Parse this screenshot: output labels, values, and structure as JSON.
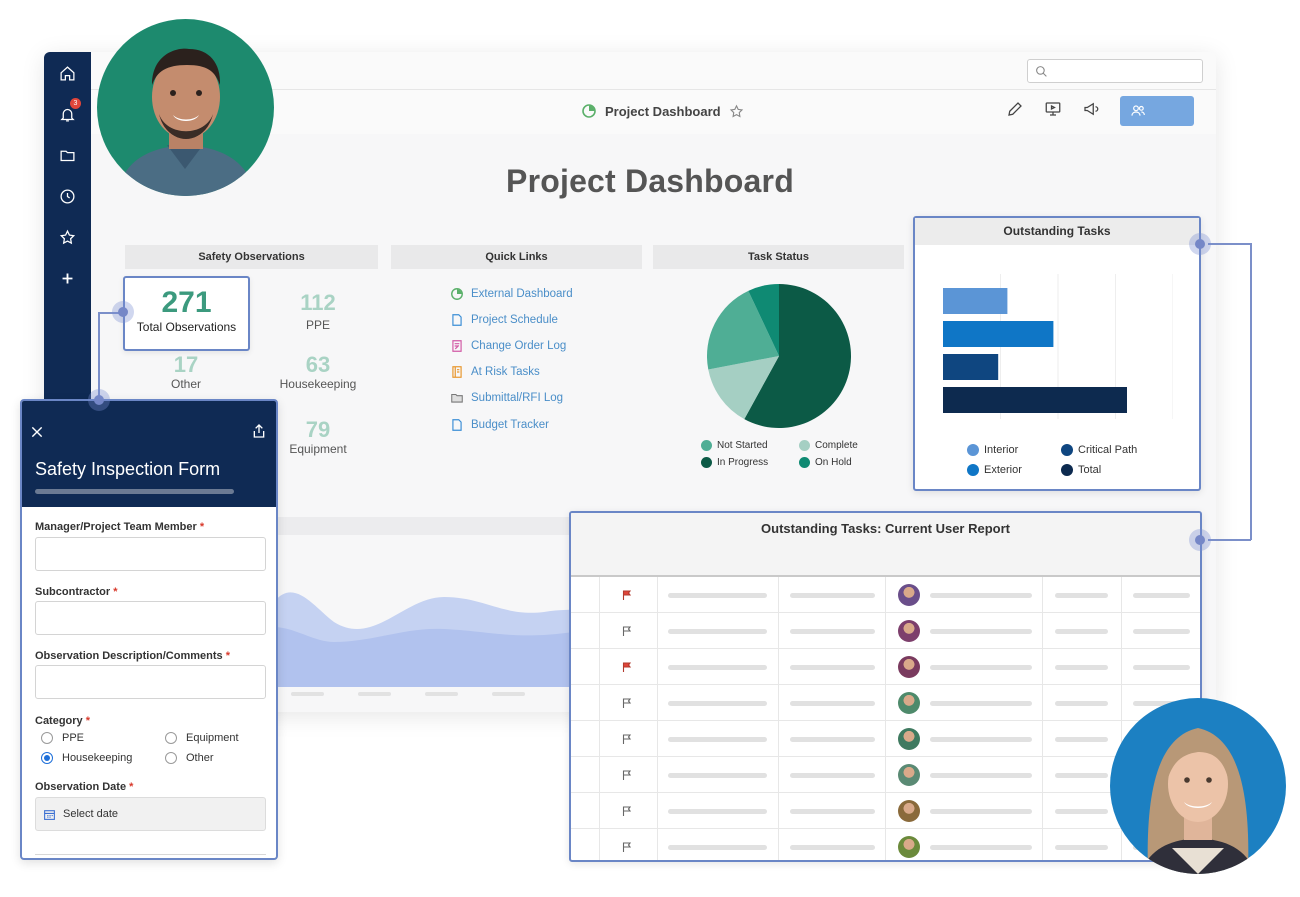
{
  "topbar": {
    "search": {
      "placeholder": ""
    }
  },
  "toolbar": {
    "title": "Project Dashboard"
  },
  "page": {
    "title": "Project Dashboard"
  },
  "sidebar": {
    "notification_count": "3"
  },
  "safety": {
    "heading": "Safety Observations",
    "total": {
      "value": "271",
      "label": "Total Observations"
    },
    "stats": [
      {
        "value": "112",
        "label": "PPE"
      },
      {
        "value": "17",
        "label": "Other"
      },
      {
        "value": "63",
        "label": "Housekeeping"
      },
      {
        "value": "79",
        "label": "Equipment"
      }
    ]
  },
  "quick_links": {
    "heading": "Quick Links",
    "items": [
      {
        "label": "External Dashboard",
        "icon": "dashboard-icon"
      },
      {
        "label": "Project Schedule",
        "icon": "document-icon"
      },
      {
        "label": "Change Order Log",
        "icon": "edit-doc-icon"
      },
      {
        "label": "At Risk Tasks",
        "icon": "notebook-icon"
      },
      {
        "label": "Submittal/RFI Log",
        "icon": "folder-icon"
      },
      {
        "label": "Budget Tracker",
        "icon": "document-icon"
      }
    ]
  },
  "task_status": {
    "heading": "Task Status",
    "legend": [
      "Not Started",
      "Complete",
      "In Progress",
      "On Hold"
    ]
  },
  "outstanding_tasks": {
    "heading": "Outstanding Tasks",
    "legend": [
      "Interior",
      "Critical Path",
      "Exterior",
      "Total"
    ]
  },
  "report": {
    "heading": "Outstanding Tasks: Current User Report"
  },
  "form": {
    "title": "Safety Inspection Form",
    "fields": {
      "manager": "Manager/Project Team Member",
      "subcontractor": "Subcontractor",
      "description": "Observation Description/Comments",
      "category": "Category",
      "date": "Observation Date"
    },
    "required_mark": "*",
    "category_options": [
      "PPE",
      "Equipment",
      "Housekeeping",
      "Other"
    ],
    "selected_category": "Housekeeping",
    "date_button": "Select date"
  },
  "colors": {
    "sidebar": "#0f2a54",
    "accent_green": "#3c9a7e",
    "not_started": "#4fae95",
    "complete": "#a5cfc3",
    "in_progress": "#0c5a46",
    "on_hold": "#0f8a73",
    "interior": "#5b95d6",
    "exterior": "#0f76c6",
    "critical_path": "#0f4680",
    "total": "#0d2a4f",
    "flag_active": "#e0453a"
  },
  "chart_data": [
    {
      "type": "pie",
      "title": "Task Status",
      "categories": [
        "In Progress",
        "Complete",
        "Not Started",
        "On Hold"
      ],
      "values": [
        58,
        14,
        21,
        7
      ]
    },
    {
      "type": "bar",
      "title": "Outstanding Tasks",
      "orientation": "horizontal",
      "categories": [
        "Interior",
        "Exterior",
        "Critical Path",
        "Total"
      ],
      "values": [
        7,
        12,
        6,
        20
      ],
      "xlim": [
        0,
        25
      ],
      "grid": true,
      "legend": "bottom"
    }
  ],
  "report_rows": [
    {
      "flagged": true
    },
    {
      "flagged": false
    },
    {
      "flagged": true
    },
    {
      "flagged": false
    },
    {
      "flagged": false
    },
    {
      "flagged": false
    },
    {
      "flagged": false
    },
    {
      "flagged": false
    }
  ]
}
